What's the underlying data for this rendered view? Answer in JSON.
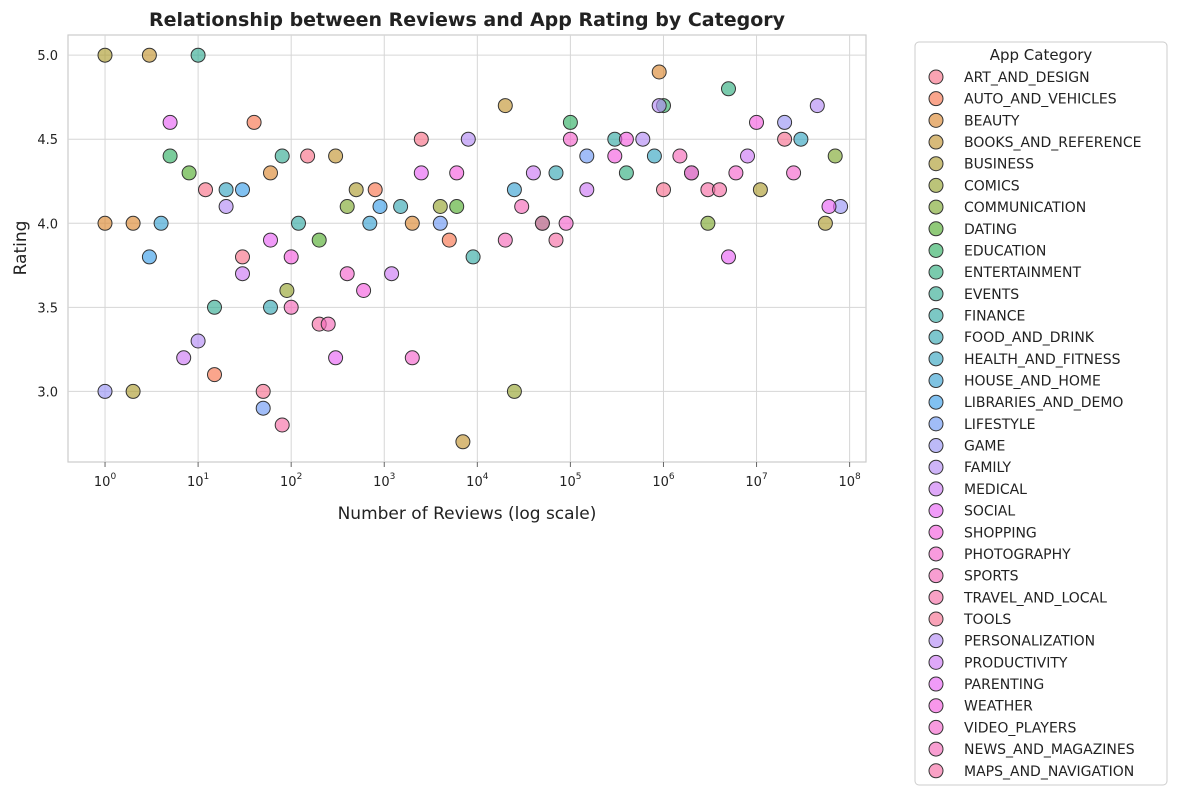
{
  "chart_data": {
    "type": "scatter",
    "title": "Relationship between Reviews and App Rating by Category",
    "xlabel": "Number of Reviews (log scale)",
    "ylabel": "Rating",
    "x_scale": "log",
    "xlim": [
      0.4,
      150000000
    ],
    "ylim": [
      2.58,
      5.12
    ],
    "x_ticks": [
      {
        "value": 1,
        "base": "10",
        "exp": "0"
      },
      {
        "value": 10,
        "base": "10",
        "exp": "1"
      },
      {
        "value": 100,
        "base": "10",
        "exp": "2"
      },
      {
        "value": 1000,
        "base": "10",
        "exp": "3"
      },
      {
        "value": 10000,
        "base": "10",
        "exp": "4"
      },
      {
        "value": 100000,
        "base": "10",
        "exp": "5"
      },
      {
        "value": 1000000,
        "base": "10",
        "exp": "6"
      },
      {
        "value": 10000000,
        "base": "10",
        "exp": "7"
      },
      {
        "value": 100000000,
        "base": "10",
        "exp": "8"
      }
    ],
    "y_ticks": [
      {
        "value": 3.0,
        "label": "3.0"
      },
      {
        "value": 3.5,
        "label": "3.5"
      },
      {
        "value": 4.0,
        "label": "4.0"
      },
      {
        "value": 4.5,
        "label": "4.5"
      },
      {
        "value": 5.0,
        "label": "5.0"
      }
    ],
    "grid": true,
    "legend_title": "App Category",
    "legend_position": "outside-right",
    "series": [
      {
        "name": "ART_AND_DESIGN",
        "color": "#f77189",
        "points": [
          [
            12,
            4.2
          ],
          [
            150,
            4.4
          ],
          [
            2500,
            4.5
          ],
          [
            30,
            3.8
          ]
        ]
      },
      {
        "name": "AUTO_AND_VEHICLES",
        "color": "#f7754f",
        "points": [
          [
            40,
            4.6
          ],
          [
            800,
            4.2
          ],
          [
            5000,
            3.9
          ],
          [
            15,
            3.1
          ]
        ]
      },
      {
        "name": "BEAUTY",
        "color": "#dc8932",
        "points": [
          [
            60,
            4.3
          ],
          [
            2000,
            4.0
          ],
          [
            900000,
            4.9
          ],
          [
            1,
            4.0
          ],
          [
            2,
            4.0
          ]
        ]
      },
      {
        "name": "BOOKS_AND_REFERENCE",
        "color": "#c39532",
        "points": [
          [
            20000,
            4.7
          ],
          [
            300,
            4.4
          ],
          [
            3,
            5.0
          ],
          [
            7000,
            2.7
          ]
        ]
      },
      {
        "name": "BUSINESS",
        "color": "#ae9d31",
        "points": [
          [
            500,
            4.2
          ],
          [
            1,
            5.0
          ],
          [
            2,
            3.0
          ],
          [
            11000000,
            4.2
          ],
          [
            55000000,
            4.0
          ]
        ]
      },
      {
        "name": "COMICS",
        "color": "#97a431",
        "points": [
          [
            4000,
            4.1
          ],
          [
            90,
            3.6
          ],
          [
            25000,
            3.0
          ]
        ]
      },
      {
        "name": "COMMUNICATION",
        "color": "#80a931",
        "points": [
          [
            70000000,
            4.4
          ],
          [
            3000000,
            4.0
          ],
          [
            400,
            4.1
          ]
        ]
      },
      {
        "name": "DATING",
        "color": "#55ad31",
        "points": [
          [
            6000,
            4.1
          ],
          [
            200,
            3.9
          ],
          [
            8,
            4.3
          ]
        ]
      },
      {
        "name": "EDUCATION",
        "color": "#32b166",
        "points": [
          [
            1000000,
            4.7
          ],
          [
            100000,
            4.6
          ],
          [
            5,
            4.4
          ]
        ]
      },
      {
        "name": "ENTERTAINMENT",
        "color": "#33af81",
        "points": [
          [
            5000000,
            4.8
          ],
          [
            400000,
            4.3
          ],
          [
            50000,
            4.0
          ]
        ]
      },
      {
        "name": "EVENTS",
        "color": "#35ac94",
        "points": [
          [
            10,
            5.0
          ],
          [
            80,
            4.4
          ],
          [
            15,
            3.5
          ]
        ]
      },
      {
        "name": "FINANCE",
        "color": "#36aaa4",
        "points": [
          [
            300000,
            4.5
          ],
          [
            9000,
            3.8
          ],
          [
            120,
            4.0
          ]
        ]
      },
      {
        "name": "FOOD_AND_DRINK",
        "color": "#37a8b3",
        "points": [
          [
            70000,
            4.3
          ],
          [
            1500,
            4.1
          ],
          [
            60,
            3.5
          ]
        ]
      },
      {
        "name": "HEALTH_AND_FITNESS",
        "color": "#38a6c1",
        "points": [
          [
            30000000,
            4.5
          ],
          [
            800000,
            4.4
          ],
          [
            20,
            4.2
          ]
        ]
      },
      {
        "name": "HOUSE_AND_HOME",
        "color": "#3aa3d2",
        "points": [
          [
            25000,
            4.2
          ],
          [
            700,
            4.0
          ],
          [
            4,
            4.0
          ]
        ]
      },
      {
        "name": "LIBRARIES_AND_DEMO",
        "color": "#3d9fea",
        "points": [
          [
            900,
            4.1
          ],
          [
            30,
            4.2
          ],
          [
            3,
            3.8
          ]
        ]
      },
      {
        "name": "LIFESTYLE",
        "color": "#6e9af4",
        "points": [
          [
            150000,
            4.4
          ],
          [
            4000,
            4.0
          ],
          [
            50,
            2.9
          ]
        ]
      },
      {
        "name": "GAME",
        "color": "#9a95f4",
        "points": [
          [
            80000000,
            4.1
          ],
          [
            20000000,
            4.6
          ],
          [
            2000000,
            4.3
          ],
          [
            1,
            3.0
          ]
        ]
      },
      {
        "name": "FAMILY",
        "color": "#b38cf4",
        "points": [
          [
            45000000,
            4.7
          ],
          [
            600000,
            4.5
          ],
          [
            10,
            3.3
          ]
        ]
      },
      {
        "name": "MEDICAL",
        "color": "#cc7af4",
        "points": [
          [
            40000,
            4.3
          ],
          [
            1200,
            3.7
          ],
          [
            7,
            3.2
          ]
        ]
      },
      {
        "name": "SOCIAL",
        "color": "#e865f4",
        "points": [
          [
            60000000,
            4.1
          ],
          [
            5000000,
            3.8
          ],
          [
            300,
            3.2
          ]
        ]
      },
      {
        "name": "SHOPPING",
        "color": "#f45fde",
        "points": [
          [
            10000000,
            4.6
          ],
          [
            300000,
            4.4
          ],
          [
            600,
            3.6
          ]
        ]
      },
      {
        "name": "PHOTOGRAPHY",
        "color": "#f565cc",
        "points": [
          [
            25000000,
            4.3
          ],
          [
            100000,
            4.5
          ],
          [
            2000,
            3.2
          ]
        ]
      },
      {
        "name": "SPORTS",
        "color": "#f56ab9",
        "points": [
          [
            2000000,
            4.3
          ],
          [
            20000,
            3.9
          ],
          [
            100,
            3.5
          ]
        ]
      },
      {
        "name": "TRAVEL_AND_LOCAL",
        "color": "#f66ea6",
        "points": [
          [
            3000000,
            4.2
          ],
          [
            50000,
            4.0
          ],
          [
            200,
            3.4
          ]
        ]
      },
      {
        "name": "TOOLS",
        "color": "#f67090",
        "points": [
          [
            20000000,
            4.5
          ],
          [
            1000000,
            4.2
          ],
          [
            50,
            3.0
          ]
        ]
      },
      {
        "name": "PERSONALIZATION",
        "color": "#b38cf4",
        "points": [
          [
            900000,
            4.7
          ],
          [
            8000,
            4.5
          ],
          [
            20,
            4.1
          ]
        ]
      },
      {
        "name": "PRODUCTIVITY",
        "color": "#cc7af4",
        "points": [
          [
            8000000,
            4.4
          ],
          [
            150000,
            4.2
          ],
          [
            30,
            3.7
          ]
        ]
      },
      {
        "name": "PARENTING",
        "color": "#e865f4",
        "points": [
          [
            2500,
            4.3
          ],
          [
            60,
            3.9
          ],
          [
            5,
            4.6
          ]
        ]
      },
      {
        "name": "WEATHER",
        "color": "#f45fde",
        "points": [
          [
            400000,
            4.5
          ],
          [
            6000,
            4.3
          ],
          [
            100,
            3.8
          ]
        ]
      },
      {
        "name": "VIDEO_PLAYERS",
        "color": "#f565cc",
        "points": [
          [
            6000000,
            4.3
          ],
          [
            90000,
            4.0
          ],
          [
            400,
            3.7
          ]
        ]
      },
      {
        "name": "NEWS_AND_MAGAZINES",
        "color": "#f56ab9",
        "points": [
          [
            1500000,
            4.4
          ],
          [
            30000,
            4.1
          ],
          [
            250,
            3.4
          ]
        ]
      },
      {
        "name": "MAPS_AND_NAVIGATION",
        "color": "#f66ea6",
        "points": [
          [
            4000000,
            4.2
          ],
          [
            70000,
            3.9
          ],
          [
            80,
            2.8
          ]
        ]
      }
    ]
  }
}
